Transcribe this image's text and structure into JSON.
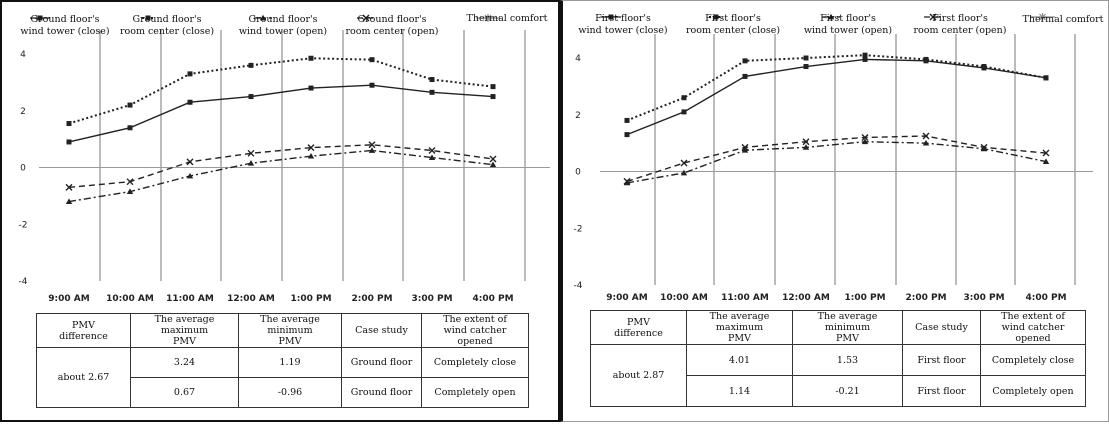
{
  "chart_data": [
    {
      "type": "line",
      "categories": [
        "9:00 AM",
        "10:00 AM",
        "11:00 AM",
        "12:00 AM",
        "1:00 PM",
        "2:00 PM",
        "3:00 PM",
        "4:00 PM"
      ],
      "ylim": [
        -4,
        4
      ],
      "yticks": [
        "4",
        "2",
        "0",
        "-2",
        "-4"
      ],
      "legend_position": "top",
      "series": [
        {
          "name": "Ground floor's wind tower (close)",
          "legend_lines": [
            "Ground floor's",
            "wind tower (close)"
          ],
          "values": [
            0.9,
            1.4,
            2.3,
            2.5,
            2.8,
            2.9,
            2.65,
            2.5
          ],
          "marker": "square",
          "dash": "solid",
          "color": "#222222"
        },
        {
          "name": "Ground floor's room center (close)",
          "legend_lines": [
            "Ground floor's",
            "room center (close)"
          ],
          "values": [
            1.55,
            2.2,
            3.3,
            3.6,
            3.85,
            3.8,
            3.1,
            2.85
          ],
          "marker": "square",
          "dash": "dot",
          "color": "#222222"
        },
        {
          "name": "Ground floor's wind tower (open)",
          "legend_lines": [
            "Ground floor's",
            "wind tower (open)"
          ],
          "values": [
            -1.2,
            -0.85,
            -0.3,
            0.15,
            0.4,
            0.6,
            0.35,
            0.1
          ],
          "marker": "triangle",
          "dash": "dashdot",
          "color": "#222222"
        },
        {
          "name": "Ground floor's room center (open)",
          "legend_lines": [
            "Ground floor's",
            "room center (open)"
          ],
          "values": [
            -0.7,
            -0.5,
            0.2,
            0.5,
            0.7,
            0.8,
            0.6,
            0.3
          ],
          "marker": "x",
          "dash": "dash",
          "color": "#222222"
        },
        {
          "name": "Thermal comfort",
          "legend_lines": [
            "Thermal comfort"
          ],
          "values": [
            0,
            0,
            0,
            0,
            0,
            0,
            0,
            0
          ],
          "marker": "star",
          "dash": "solid",
          "color": "#888888"
        }
      ],
      "table": {
        "headers": [
          [
            "PMV",
            "difference"
          ],
          [
            "The average maximum",
            "PMV"
          ],
          [
            "The average minimum",
            "PMV"
          ],
          [
            "Case study"
          ],
          [
            "The extent of",
            "wind catcher opened"
          ]
        ],
        "difference": "about  2.67",
        "rows": [
          [
            "3.24",
            "1.19",
            "Ground floor",
            "Completely close"
          ],
          [
            "0.67",
            "-0.96",
            "Ground floor",
            "Completely open"
          ]
        ]
      }
    },
    {
      "type": "line",
      "categories": [
        "9:00 AM",
        "10:00 AM",
        "11:00 AM",
        "12:00 AM",
        "1:00 PM",
        "2:00 PM",
        "3:00 PM",
        "4:00 PM"
      ],
      "ylim": [
        -4,
        4
      ],
      "yticks": [
        "4",
        "2",
        "0",
        "-2",
        "-4"
      ],
      "legend_position": "top",
      "series": [
        {
          "name": "First floor's wind tower (close)",
          "legend_lines": [
            "First floor's",
            "wind tower (close)"
          ],
          "values": [
            1.3,
            2.1,
            3.35,
            3.7,
            3.95,
            3.9,
            3.65,
            3.3
          ],
          "marker": "square",
          "dash": "solid",
          "color": "#222222"
        },
        {
          "name": "First floor's room center (close)",
          "legend_lines": [
            "First floor's",
            "room center (close)"
          ],
          "values": [
            1.8,
            2.6,
            3.9,
            4.0,
            4.1,
            3.95,
            3.7,
            3.3
          ],
          "marker": "square",
          "dash": "dot",
          "color": "#222222"
        },
        {
          "name": "First floor's wind tower (open)",
          "legend_lines": [
            "First floor's",
            "wind tower (open)"
          ],
          "values": [
            -0.4,
            -0.05,
            0.75,
            0.85,
            1.05,
            1.0,
            0.8,
            0.35
          ],
          "marker": "triangle",
          "dash": "dashdot",
          "color": "#222222"
        },
        {
          "name": "First floor's room center (open)",
          "legend_lines": [
            "First floor's",
            "room center (open)"
          ],
          "values": [
            -0.35,
            0.3,
            0.85,
            1.05,
            1.2,
            1.25,
            0.85,
            0.65
          ],
          "marker": "x",
          "dash": "dash",
          "color": "#222222"
        },
        {
          "name": "Thermal comfort",
          "legend_lines": [
            "Thermal comfort"
          ],
          "values": [
            0,
            0,
            0,
            0,
            0,
            0,
            0,
            0
          ],
          "marker": "star",
          "dash": "solid",
          "color": "#888888"
        }
      ],
      "table": {
        "headers": [
          [
            "PMV",
            "difference"
          ],
          [
            "The average maximum",
            "PMV"
          ],
          [
            "The average minimum",
            "PMV"
          ],
          [
            "Case study"
          ],
          [
            "The extent of",
            "wind catcher opened"
          ]
        ],
        "difference": "about  2.87",
        "rows": [
          [
            "4.01",
            "1.53",
            "First floor",
            "Completely close"
          ],
          [
            "1.14",
            "-0.21",
            "First floor",
            "Completely open"
          ]
        ]
      }
    }
  ]
}
